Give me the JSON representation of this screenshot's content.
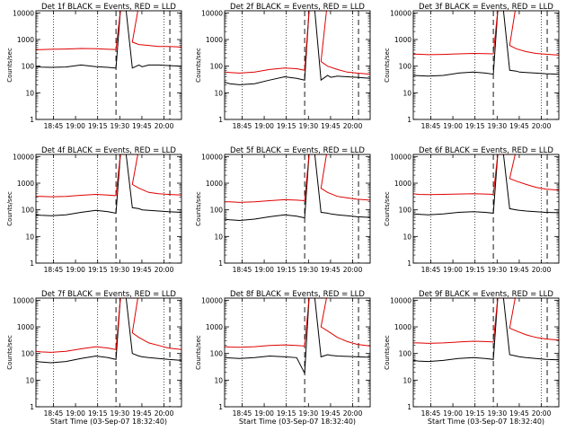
{
  "colors": {
    "events": "#000000",
    "lld": "#e00000",
    "axis": "#000000",
    "background": "#ffffff"
  },
  "chart_data": [
    {
      "type": "line",
      "title": "Det 1f BLACK = Events, RED = LLD",
      "xlabel": "",
      "ylabel": "Counts/sec",
      "yscale": "log",
      "ylim": [
        1,
        12000
      ],
      "x_ticklabels": [
        "18:45",
        "19:00",
        "19:15",
        "19:30",
        "19:45",
        "20:00"
      ],
      "y_ticklabels": [
        "1",
        "10",
        "100",
        "1000",
        "10000"
      ],
      "series": [
        {
          "name": "Events",
          "x": [
            0,
            0.05,
            0.15,
            0.3,
            0.45,
            0.6,
            0.72,
            0.8,
            0.85,
            0.87,
            0.88,
            0.9,
            0.93,
            0.96,
            1
          ],
          "y": [
            95,
            92,
            90,
            93,
            110,
            95,
            90,
            85,
            85,
            110,
            95,
            110,
            110,
            105,
            100
          ]
        },
        {
          "name": "LLD",
          "x": [
            0,
            0.05,
            0.15,
            0.3,
            0.45,
            0.6,
            0.72,
            0.8,
            0.85,
            0.87,
            0.9,
            0.93,
            0.96,
            1
          ],
          "y": [
            420,
            420,
            430,
            440,
            460,
            450,
            430,
            420,
            800,
            650,
            600,
            550,
            550,
            520
          ]
        }
      ]
    },
    {
      "type": "line",
      "title": "Det 2f BLACK = Events, RED = LLD",
      "xlabel": "",
      "ylabel": "Counts/sec",
      "yscale": "log",
      "ylim": [
        1,
        12000
      ],
      "x_ticklabels": [
        "18:45",
        "19:00",
        "19:15",
        "19:30",
        "19:45",
        "20:00"
      ],
      "y_ticklabels": [
        "1",
        "10",
        "100",
        "1000",
        "10000"
      ],
      "series": [
        {
          "name": "Events",
          "x": [
            0,
            0.05,
            0.15,
            0.3,
            0.45,
            0.6,
            0.72,
            0.8,
            0.85,
            0.87,
            0.88,
            0.9,
            0.93,
            0.96,
            1
          ],
          "y": [
            25,
            22,
            20,
            22,
            30,
            40,
            35,
            30,
            30,
            45,
            38,
            42,
            40,
            38,
            35
          ]
        },
        {
          "name": "LLD",
          "x": [
            0,
            0.05,
            0.15,
            0.3,
            0.45,
            0.6,
            0.72,
            0.8,
            0.85,
            0.87,
            0.9,
            0.93,
            0.96,
            1
          ],
          "y": [
            60,
            58,
            55,
            60,
            75,
            85,
            80,
            70,
            150,
            100,
            75,
            60,
            55,
            50
          ]
        }
      ]
    },
    {
      "type": "line",
      "title": "Det 3f BLACK = Events, RED = LLD",
      "xlabel": "",
      "ylabel": "Counts/sec",
      "yscale": "log",
      "ylim": [
        1,
        12000
      ],
      "x_ticklabels": [
        "18:45",
        "19:00",
        "19:15",
        "19:30",
        "19:45",
        "20:00"
      ],
      "y_ticklabels": [
        "1",
        "10",
        "100",
        "1000",
        "10000"
      ],
      "series": [
        {
          "name": "Events",
          "x": [
            0,
            0.05,
            0.15,
            0.3,
            0.45,
            0.6,
            0.72,
            0.8,
            0.85,
            0.87,
            0.88,
            0.9,
            0.93,
            0.96,
            1
          ],
          "y": [
            45,
            44,
            42,
            45,
            55,
            60,
            55,
            50,
            70,
            65,
            60,
            58,
            55,
            52,
            50
          ]
        },
        {
          "name": "LLD",
          "x": [
            0,
            0.05,
            0.15,
            0.3,
            0.45,
            0.6,
            0.72,
            0.8,
            0.85,
            0.87,
            0.9,
            0.93,
            0.96,
            1
          ],
          "y": [
            280,
            280,
            270,
            275,
            290,
            300,
            295,
            290,
            600,
            450,
            350,
            300,
            280,
            260
          ]
        }
      ]
    },
    {
      "type": "line",
      "title": "Det 4f BLACK = Events, RED = LLD",
      "xlabel": "",
      "ylabel": "Counts/sec",
      "yscale": "log",
      "ylim": [
        1,
        12000
      ],
      "x_ticklabels": [
        "18:45",
        "19:00",
        "19:15",
        "19:30",
        "19:45",
        "20:00"
      ],
      "y_ticklabels": [
        "1",
        "10",
        "100",
        "1000",
        "10000"
      ],
      "series": [
        {
          "name": "Events",
          "x": [
            0,
            0.05,
            0.15,
            0.3,
            0.45,
            0.6,
            0.72,
            0.8,
            0.85,
            0.87,
            0.88,
            0.9,
            0.93,
            0.96,
            1
          ],
          "y": [
            65,
            62,
            60,
            65,
            80,
            95,
            85,
            75,
            120,
            110,
            100,
            95,
            90,
            85,
            80
          ]
        },
        {
          "name": "LLD",
          "x": [
            0,
            0.05,
            0.15,
            0.3,
            0.45,
            0.6,
            0.72,
            0.8,
            0.85,
            0.87,
            0.9,
            0.93,
            0.96,
            1
          ],
          "y": [
            320,
            320,
            310,
            320,
            350,
            380,
            360,
            340,
            900,
            650,
            450,
            400,
            380,
            360
          ]
        }
      ]
    },
    {
      "type": "line",
      "title": "Det 5f BLACK = Events, RED = LLD",
      "xlabel": "",
      "ylabel": "Counts/sec",
      "yscale": "log",
      "ylim": [
        1,
        12000
      ],
      "x_ticklabels": [
        "18:45",
        "19:00",
        "19:15",
        "19:30",
        "19:45",
        "20:00"
      ],
      "y_ticklabels": [
        "1",
        "10",
        "100",
        "1000",
        "10000"
      ],
      "series": [
        {
          "name": "Events",
          "x": [
            0,
            0.05,
            0.15,
            0.3,
            0.45,
            0.6,
            0.72,
            0.8,
            0.85,
            0.87,
            0.88,
            0.9,
            0.93,
            0.96,
            1
          ],
          "y": [
            45,
            42,
            40,
            45,
            55,
            65,
            58,
            50,
            80,
            75,
            70,
            65,
            60,
            55,
            52
          ]
        },
        {
          "name": "LLD",
          "x": [
            0,
            0.05,
            0.15,
            0.3,
            0.45,
            0.6,
            0.72,
            0.8,
            0.85,
            0.87,
            0.9,
            0.93,
            0.96,
            1
          ],
          "y": [
            200,
            200,
            190,
            200,
            220,
            240,
            230,
            220,
            650,
            450,
            320,
            280,
            250,
            230
          ]
        }
      ]
    },
    {
      "type": "line",
      "title": "Det 6f BLACK = Events, RED = LLD",
      "xlabel": "",
      "ylabel": "Counts/sec",
      "yscale": "log",
      "ylim": [
        1,
        12000
      ],
      "x_ticklabels": [
        "18:45",
        "19:00",
        "19:15",
        "19:30",
        "19:45",
        "20:00"
      ],
      "y_ticklabels": [
        "1",
        "10",
        "100",
        "1000",
        "10000"
      ],
      "series": [
        {
          "name": "Events",
          "x": [
            0,
            0.05,
            0.15,
            0.3,
            0.45,
            0.6,
            0.72,
            0.8,
            0.85,
            0.87,
            0.88,
            0.9,
            0.93,
            0.96,
            1
          ],
          "y": [
            70,
            68,
            65,
            70,
            80,
            85,
            80,
            75,
            110,
            100,
            95,
            90,
            85,
            80,
            78
          ]
        },
        {
          "name": "LLD",
          "x": [
            0,
            0.05,
            0.15,
            0.3,
            0.45,
            0.6,
            0.72,
            0.8,
            0.85,
            0.87,
            0.9,
            0.93,
            0.96,
            1
          ],
          "y": [
            400,
            380,
            370,
            380,
            390,
            400,
            390,
            380,
            1500,
            1200,
            900,
            700,
            600,
            550
          ]
        }
      ]
    },
    {
      "type": "line",
      "title": "Det 7f BLACK = Events, RED = LLD",
      "xlabel": "Start Time (03-Sep-07 18:32:40)",
      "ylabel": "Counts/sec",
      "yscale": "log",
      "ylim": [
        1,
        12000
      ],
      "x_ticklabels": [
        "18:45",
        "19:00",
        "19:15",
        "19:30",
        "19:45",
        "20:00"
      ],
      "y_ticklabels": [
        "1",
        "10",
        "100",
        "1000",
        "10000"
      ],
      "series": [
        {
          "name": "Events",
          "x": [
            0,
            0.05,
            0.15,
            0.3,
            0.45,
            0.6,
            0.72,
            0.8,
            0.85,
            0.87,
            0.88,
            0.9,
            0.93,
            0.96,
            1
          ],
          "y": [
            50,
            48,
            45,
            50,
            65,
            80,
            70,
            60,
            100,
            80,
            75,
            70,
            65,
            60,
            55
          ]
        },
        {
          "name": "LLD",
          "x": [
            0,
            0.05,
            0.15,
            0.3,
            0.45,
            0.6,
            0.72,
            0.8,
            0.85,
            0.87,
            0.9,
            0.93,
            0.96,
            1
          ],
          "y": [
            120,
            115,
            110,
            120,
            150,
            180,
            160,
            140,
            600,
            400,
            250,
            200,
            160,
            140
          ]
        }
      ]
    },
    {
      "type": "line",
      "title": "Det 8f BLACK = Events, RED = LLD",
      "xlabel": "Start Time (03-Sep-07 18:32:40)",
      "ylabel": "Counts/sec",
      "yscale": "log",
      "ylim": [
        1,
        12000
      ],
      "x_ticklabels": [
        "18:45",
        "19:00",
        "19:15",
        "19:30",
        "19:45",
        "20:00"
      ],
      "y_ticklabels": [
        "1",
        "10",
        "100",
        "1000",
        "10000"
      ],
      "series": [
        {
          "name": "Events",
          "x": [
            0,
            0.05,
            0.15,
            0.3,
            0.45,
            0.6,
            0.72,
            0.8,
            0.85,
            0.87,
            0.88,
            0.9,
            0.93,
            0.96,
            1
          ],
          "y": [
            70,
            68,
            65,
            70,
            80,
            75,
            70,
            18,
            75,
            90,
            85,
            80,
            78,
            75,
            72
          ]
        },
        {
          "name": "LLD",
          "x": [
            0,
            0.05,
            0.15,
            0.3,
            0.45,
            0.6,
            0.72,
            0.8,
            0.85,
            0.87,
            0.9,
            0.93,
            0.96,
            1
          ],
          "y": [
            180,
            175,
            170,
            180,
            200,
            210,
            200,
            190,
            1000,
            700,
            400,
            280,
            220,
            190
          ]
        }
      ]
    },
    {
      "type": "line",
      "title": "Det 9f BLACK = Events, RED = LLD",
      "xlabel": "Start Time (03-Sep-07 18:32:40)",
      "ylabel": "Counts/sec",
      "yscale": "log",
      "ylim": [
        1,
        12000
      ],
      "x_ticklabels": [
        "18:45",
        "19:00",
        "19:15",
        "19:30",
        "19:45",
        "20:00"
      ],
      "y_ticklabels": [
        "1",
        "10",
        "100",
        "1000",
        "10000"
      ],
      "series": [
        {
          "name": "Events",
          "x": [
            0,
            0.05,
            0.15,
            0.3,
            0.45,
            0.6,
            0.72,
            0.8,
            0.85,
            0.87,
            0.88,
            0.9,
            0.93,
            0.96,
            1
          ],
          "y": [
            55,
            52,
            50,
            55,
            65,
            70,
            65,
            60,
            90,
            80,
            75,
            70,
            65,
            60,
            58
          ]
        },
        {
          "name": "LLD",
          "x": [
            0,
            0.05,
            0.15,
            0.3,
            0.45,
            0.6,
            0.72,
            0.8,
            0.85,
            0.87,
            0.9,
            0.93,
            0.96,
            1
          ],
          "y": [
            250,
            250,
            240,
            250,
            270,
            290,
            280,
            270,
            900,
            700,
            500,
            400,
            350,
            320
          ]
        }
      ]
    }
  ]
}
